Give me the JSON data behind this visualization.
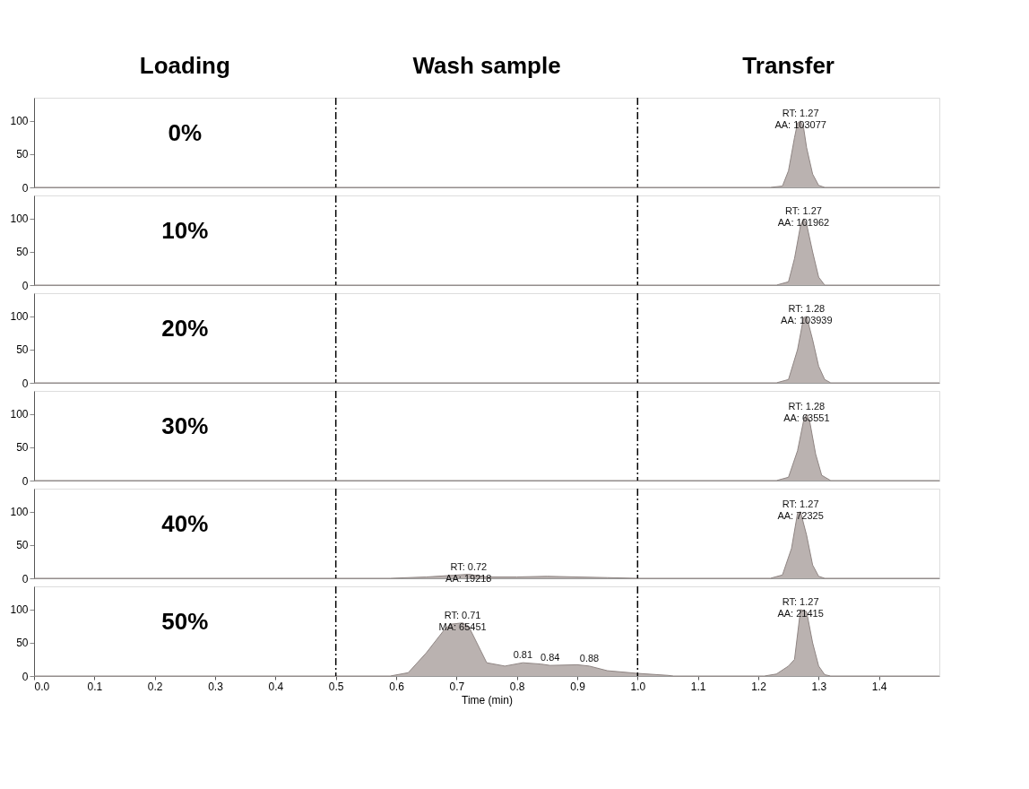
{
  "chart_data": [
    {
      "type": "area",
      "title": "0%",
      "color": "#bab2b0",
      "x": [
        0.0,
        1.22,
        1.24,
        1.25,
        1.26,
        1.265,
        1.27,
        1.275,
        1.28,
        1.29,
        1.3,
        1.31,
        1.5
      ],
      "values": [
        0,
        0,
        2,
        25,
        75,
        97,
        100,
        90,
        60,
        20,
        3,
        0,
        0
      ],
      "xlim": [
        0,
        1.5
      ],
      "ylim": [
        0,
        135
      ],
      "yticks": [
        0,
        50,
        100
      ],
      "tick_labels": "y",
      "ref_lines": [
        {
          "axis": "x",
          "value": 0.5,
          "line_style": "dashed",
          "color": "#000000"
        },
        {
          "axis": "x",
          "value": 1.0,
          "line_style": "dashed",
          "color": "#000000"
        }
      ],
      "annotations": [
        "Loading",
        "Wash sample",
        "Transfer",
        {
          "text": "RT: 1.27\nAA: 103077",
          "x": 1.27,
          "y": 100
        }
      ]
    },
    {
      "type": "area",
      "title": "10%",
      "color": "#bab2b0",
      "x": [
        0.0,
        1.23,
        1.25,
        1.26,
        1.27,
        1.275,
        1.28,
        1.29,
        1.3,
        1.31,
        1.5
      ],
      "values": [
        0,
        0,
        5,
        40,
        90,
        100,
        92,
        50,
        12,
        0,
        0
      ],
      "xlim": [
        0,
        1.5
      ],
      "ylim": [
        0,
        135
      ],
      "yticks": [
        0,
        50,
        100
      ],
      "tick_labels": "y",
      "ref_lines": [
        {
          "axis": "x",
          "value": 0.5,
          "line_style": "dashed",
          "color": "#000000"
        },
        {
          "axis": "x",
          "value": 1.0,
          "line_style": "dashed",
          "color": "#000000"
        }
      ],
      "annotations": [
        {
          "text": "RT: 1.27\nAA: 101962",
          "x": 1.275,
          "y": 100
        }
      ]
    },
    {
      "type": "area",
      "title": "20%",
      "color": "#bab2b0",
      "x": [
        0.0,
        1.23,
        1.25,
        1.265,
        1.275,
        1.28,
        1.29,
        1.3,
        1.31,
        1.32,
        1.5
      ],
      "values": [
        0,
        0,
        5,
        50,
        98,
        100,
        65,
        25,
        5,
        0,
        0
      ],
      "xlim": [
        0,
        1.5
      ],
      "ylim": [
        0,
        135
      ],
      "yticks": [
        0,
        50,
        100
      ],
      "tick_labels": "y",
      "ref_lines": [
        {
          "axis": "x",
          "value": 0.5,
          "line_style": "dashed",
          "color": "#000000"
        },
        {
          "axis": "x",
          "value": 1.0,
          "line_style": "dashed",
          "color": "#000000"
        }
      ],
      "annotations": [
        {
          "text": "RT: 1.28\nAA: 103939",
          "x": 1.28,
          "y": 100
        }
      ]
    },
    {
      "type": "area",
      "title": "30%",
      "color": "#bab2b0",
      "x": [
        0.0,
        1.23,
        1.25,
        1.265,
        1.275,
        1.28,
        1.285,
        1.295,
        1.305,
        1.32,
        1.5
      ],
      "values": [
        0,
        0,
        5,
        45,
        90,
        100,
        90,
        40,
        8,
        0,
        0
      ],
      "xlim": [
        0,
        1.5
      ],
      "ylim": [
        0,
        135
      ],
      "yticks": [
        0,
        50,
        100
      ],
      "tick_labels": "y",
      "ref_lines": [
        {
          "axis": "x",
          "value": 0.5,
          "line_style": "dashed",
          "color": "#000000"
        },
        {
          "axis": "x",
          "value": 1.0,
          "line_style": "dashed",
          "color": "#000000"
        }
      ],
      "annotations": [
        {
          "text": "RT: 1.28\nAA: 63551",
          "x": 1.28,
          "y": 100
        }
      ]
    },
    {
      "type": "area",
      "title": "40%",
      "color": "#bab2b0",
      "x": [
        0.0,
        0.59,
        0.65,
        0.72,
        0.75,
        0.8,
        0.85,
        0.9,
        0.95,
        1.0,
        1.22,
        1.24,
        1.255,
        1.265,
        1.27,
        1.28,
        1.29,
        1.3,
        1.31,
        1.5
      ],
      "values": [
        0,
        0,
        2,
        6,
        2,
        2,
        3,
        2,
        1,
        0,
        0,
        5,
        45,
        98,
        100,
        65,
        20,
        3,
        0,
        0
      ],
      "xlim": [
        0,
        1.5
      ],
      "ylim": [
        0,
        135
      ],
      "yticks": [
        0,
        50,
        100
      ],
      "tick_labels": "y",
      "ref_lines": [
        {
          "axis": "x",
          "value": 0.5,
          "line_style": "dashed",
          "color": "#000000"
        },
        {
          "axis": "x",
          "value": 1.0,
          "line_style": "dashed",
          "color": "#000000"
        }
      ],
      "annotations": [
        {
          "text": "RT: 0.72\nAA: 19218",
          "x": 0.72,
          "y": 6
        },
        {
          "text": "RT: 1.27\nAA: 72325",
          "x": 1.27,
          "y": 100
        }
      ]
    },
    {
      "type": "area",
      "title": "50%",
      "color": "#bab2b0",
      "x": [
        0.0,
        0.59,
        0.62,
        0.65,
        0.68,
        0.69,
        0.71,
        0.72,
        0.75,
        0.78,
        0.81,
        0.84,
        0.855,
        0.9,
        0.92,
        0.95,
        1.0,
        1.05,
        1.06,
        1.21,
        1.23,
        1.25,
        1.26,
        1.27,
        1.28,
        1.29,
        1.3,
        1.31,
        1.32,
        1.5
      ],
      "values": [
        0,
        0,
        5,
        35,
        70,
        78,
        80,
        75,
        20,
        15,
        20,
        18,
        16,
        17,
        15,
        8,
        4,
        1,
        0,
        0,
        3,
        15,
        25,
        100,
        97,
        50,
        15,
        2,
        0,
        0
      ],
      "xlim": [
        0,
        1.5
      ],
      "ylim": [
        0,
        135
      ],
      "yticks": [
        0,
        50,
        100
      ],
      "xticks": [
        {
          "value": 0,
          "label": "0.0"
        },
        0.1,
        0.2,
        0.3,
        0.4,
        0.5,
        0.6,
        0.7,
        0.8,
        0.9,
        {
          "value": 1,
          "label": "1.0"
        },
        1.1,
        1.2,
        1.3,
        1.4
      ],
      "xlabel": "Time (min)",
      "ref_lines": [
        {
          "axis": "x",
          "value": 0.5,
          "line_style": "dashed",
          "color": "#000000"
        },
        {
          "axis": "x",
          "value": 1.0,
          "line_style": "dashed",
          "color": "#000000"
        }
      ],
      "annotations": [
        {
          "text": "RT: 0.71\nMA: 65451",
          "x": 0.71,
          "y": 80
        },
        {
          "text": "0.81",
          "x": 0.81,
          "y": 20
        },
        {
          "text": "0.84",
          "x": 0.855,
          "y": 16
        },
        {
          "text": "0.88",
          "x": 0.92,
          "y": 15
        },
        {
          "text": "RT: 1.27\nAA: 21415",
          "x": 1.27,
          "y": 100
        }
      ]
    }
  ]
}
